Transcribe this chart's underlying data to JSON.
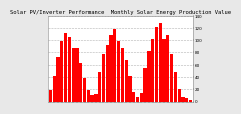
{
  "title": "Solar PV/Inverter Performance  Monthly Solar Energy Production Value",
  "bar_color": "#FF0000",
  "fig_bg": "#E8E8E8",
  "plot_bg": "#FFFFFF",
  "grid_color": "#AAAAAA",
  "values": [
    18,
    42,
    72,
    98,
    112,
    105,
    88,
    88,
    62,
    38,
    18,
    10,
    12,
    48,
    78,
    92,
    108,
    118,
    98,
    88,
    68,
    42,
    16,
    8,
    14,
    55,
    82,
    102,
    122,
    128,
    102,
    108,
    78,
    48,
    20,
    8,
    6,
    3
  ],
  "ylim": [
    0,
    140
  ],
  "yticks": [
    0,
    20,
    40,
    60,
    80,
    100,
    120,
    140
  ],
  "ytick_labels": [
    "0",
    "20",
    "40",
    "60",
    "80",
    "100",
    "120",
    "140"
  ],
  "tick_color": "#000000",
  "spine_color": "#888888",
  "title_fontsize": 4,
  "tick_fontsize": 3
}
